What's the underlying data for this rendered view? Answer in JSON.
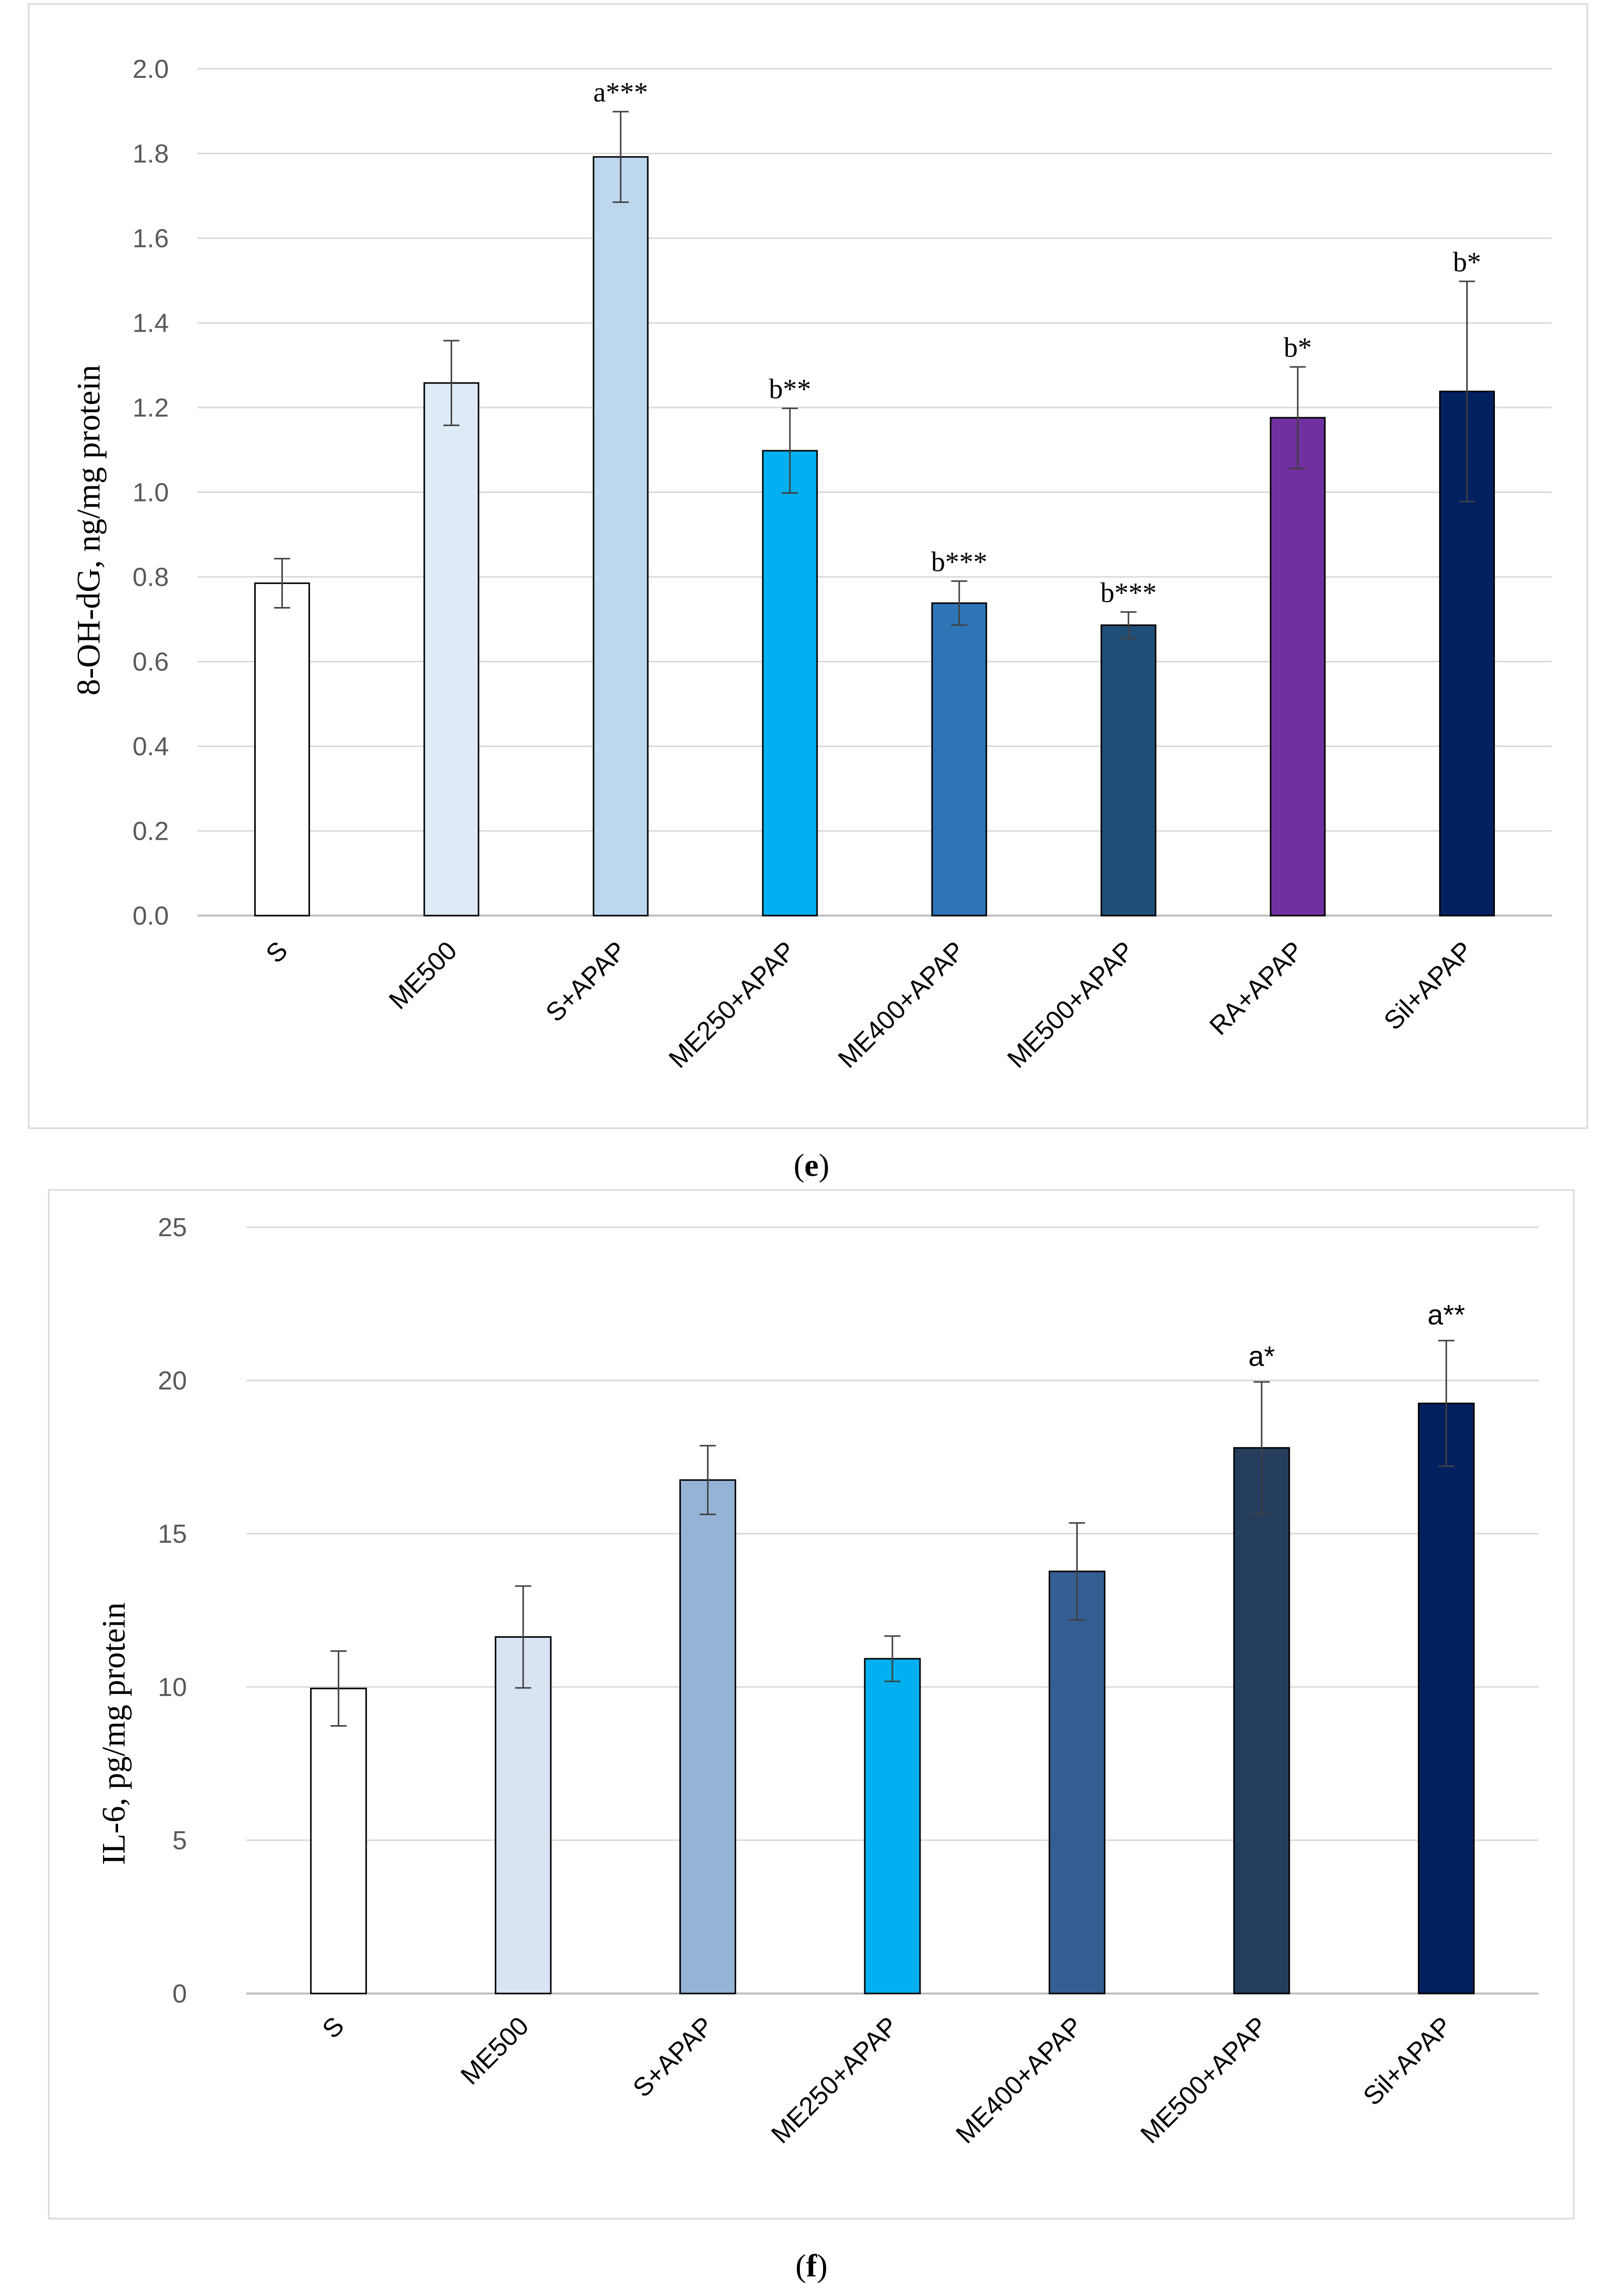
{
  "panels": [
    {
      "caption_letter": "e",
      "chart_data": {
        "type": "bar",
        "title": "",
        "xlabel": "",
        "ylabel": "8-OH-dG, ng/mg protein",
        "ylim": [
          0,
          2.0
        ],
        "yticks": [
          "0.0",
          "0.2",
          "0.4",
          "0.6",
          "0.8",
          "1.0",
          "1.2",
          "1.4",
          "1.6",
          "1.8",
          "2.0"
        ],
        "grid": true,
        "categories": [
          "S",
          "ME500",
          "S+APAP",
          "ME250+APAP",
          "ME400+APAP",
          "ME500+APAP",
          "RA+APAP",
          "Sil+APAP"
        ],
        "values": [
          0.785,
          1.258,
          1.792,
          1.098,
          0.738,
          0.686,
          1.176,
          1.238
        ],
        "errors": [
          0.058,
          0.1,
          0.107,
          0.1,
          0.052,
          0.031,
          0.12,
          0.26
        ],
        "annotations": [
          "",
          "",
          "a***",
          "b**",
          "b***",
          "b***",
          "b*",
          "b*"
        ],
        "colors": [
          "#ffffff",
          "#deebf7",
          "#bdd7ee",
          "#00b0f0",
          "#2e75b6",
          "#1f4e79",
          "#7030a0",
          "#002060"
        ]
      }
    },
    {
      "caption_letter": "f",
      "chart_data": {
        "type": "bar",
        "title": "",
        "xlabel": "",
        "ylabel": "IL-6, pg/mg protein",
        "ylim": [
          0,
          25
        ],
        "yticks": [
          "0",
          "5",
          "10",
          "15",
          "20",
          "25"
        ],
        "grid": true,
        "categories": [
          "S",
          "ME500",
          "S+APAP",
          "ME250+APAP",
          "ME400+APAP",
          "ME500+APAP",
          "Sil+APAP"
        ],
        "values": [
          9.95,
          11.63,
          16.75,
          10.92,
          13.77,
          17.8,
          19.25
        ],
        "errors": [
          1.22,
          1.66,
          1.12,
          0.74,
          1.58,
          2.15,
          2.05
        ],
        "annotations": [
          "",
          "",
          "",
          "",
          "",
          "a*",
          "a**"
        ],
        "colors": [
          "#ffffff",
          "#dae3f3",
          "#95b3d7",
          "#00b0f0",
          "#345e91",
          "#253e5e",
          "#002060"
        ]
      }
    }
  ]
}
